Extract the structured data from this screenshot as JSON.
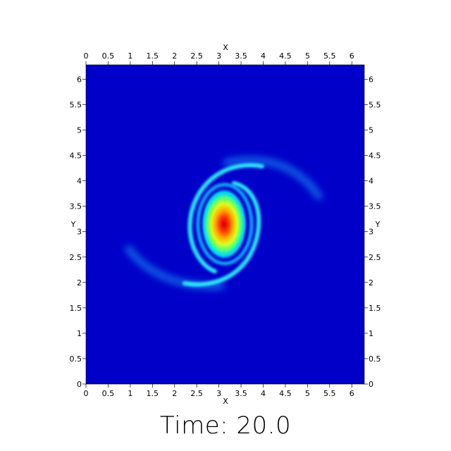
{
  "chart_data": {
    "type": "heatmap",
    "title": "",
    "xlabel": "X",
    "ylabel": "Y",
    "xlim": [
      0,
      6.283
    ],
    "ylim": [
      0,
      6.283
    ],
    "x_ticks": [
      0,
      0.5,
      1,
      1.5,
      2,
      2.5,
      3,
      3.5,
      4,
      4.5,
      5,
      5.5,
      6
    ],
    "y_ticks": [
      0,
      0.5,
      1,
      1.5,
      2,
      2.5,
      3,
      3.5,
      4,
      4.5,
      5,
      5.5,
      6
    ],
    "colormap": "jet",
    "background_color": "#0000c8",
    "grid": false,
    "features": {
      "core_center": [
        3.14,
        3.14
      ],
      "spiral_arms": 2
    }
  },
  "caption": "Time: 20.0"
}
